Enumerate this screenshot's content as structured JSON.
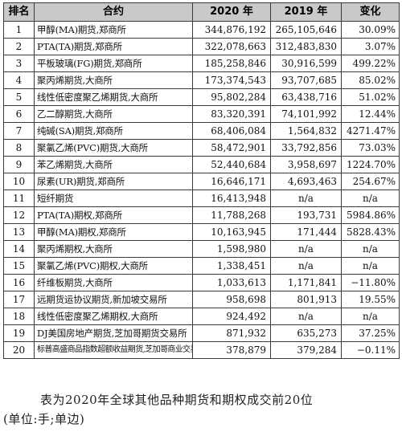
{
  "table": {
    "headers": [
      "排名",
      "合约",
      "2020 年",
      "2019 年",
      "变化"
    ],
    "rows": [
      {
        "rank": "1",
        "name": "甲醇(MA)期货,郑商所",
        "v2020": "344,876,192",
        "v2019": "265,105,646",
        "change": "30.09%"
      },
      {
        "rank": "2",
        "name": "PTA(TA)期货,郑商所",
        "v2020": "322,078,663",
        "v2019": "312,483,830",
        "change": "3.07%"
      },
      {
        "rank": "3",
        "name": "平板玻璃(FG)期货,郑商所",
        "v2020": "185,258,846",
        "v2019": "30,916,599",
        "change": "499.22%"
      },
      {
        "rank": "4",
        "name": "聚丙烯期货,大商所",
        "v2020": "173,374,543",
        "v2019": "93,707,685",
        "change": "85.02%"
      },
      {
        "rank": "5",
        "name": "线性低密度聚乙烯期货,大商所",
        "v2020": "95,802,284",
        "v2019": "63,438,716",
        "change": "51.02%"
      },
      {
        "rank": "6",
        "name": "乙二醇期货,大商所",
        "v2020": "83,320,391",
        "v2019": "74,101,992",
        "change": "12.44%"
      },
      {
        "rank": "7",
        "name": "纯碱(SA)期货,郑商所",
        "v2020": "68,406,084",
        "v2019": "1,564,832",
        "change": "4271.47%"
      },
      {
        "rank": "8",
        "name": "聚氯乙烯(PVC)期货,大商所",
        "v2020": "58,472,901",
        "v2019": "33,792,856",
        "change": "73.03%"
      },
      {
        "rank": "9",
        "name": "苯乙烯期货,大商所",
        "v2020": "52,440,684",
        "v2019": "3,958,697",
        "change": "1224.70%"
      },
      {
        "rank": "10",
        "name": "尿素(UR)期货,郑商所",
        "v2020": "16,646,171",
        "v2019": "4,693,463",
        "change": "254.67%"
      },
      {
        "rank": "11",
        "name": "短纤期货",
        "v2020": "16,413,948",
        "v2019": "n/a",
        "change": "n/a"
      },
      {
        "rank": "12",
        "name": "PTA(TA)期权,郑商所",
        "v2020": "11,788,268",
        "v2019": "193,731",
        "change": "5984.86%"
      },
      {
        "rank": "13",
        "name": "甲醇(MA)期权,郑商所",
        "v2020": "10,163,945",
        "v2019": "171,444",
        "change": "5828.43%"
      },
      {
        "rank": "14",
        "name": "聚丙烯期权,大商所",
        "v2020": "1,598,980",
        "v2019": "n/a",
        "change": "n/a"
      },
      {
        "rank": "15",
        "name": "聚氯乙烯(PVC)期权,大商所",
        "v2020": "1,338,451",
        "v2019": "n/a",
        "change": "n/a"
      },
      {
        "rank": "16",
        "name": "纤维板期货,大商所",
        "v2020": "1,033,613",
        "v2019": "1,171,841",
        "change": "−11.80%"
      },
      {
        "rank": "17",
        "name": "远期货运协议期货,新加坡交易所",
        "v2020": "958,698",
        "v2019": "801,913",
        "change": "19.55%"
      },
      {
        "rank": "18",
        "name": "线性低密度聚乙烯期权,大商所",
        "v2020": "924,492",
        "v2019": "n/a",
        "change": "n/a"
      },
      {
        "rank": "19",
        "name": "DJ美国房地产期货,芝加哥期货交易所",
        "v2020": "871,932",
        "v2019": "635,273",
        "change": "37.25%"
      },
      {
        "rank": "20",
        "name": "标普高盛商品指数超额收益期货,芝加哥商业交易所",
        "v2020": "378,879",
        "v2019": "379,284",
        "change": "−0.11%"
      }
    ]
  },
  "caption": {
    "line1": "表为2020年全球其他品种期货和期权成交前20位",
    "line2": "(单位:手;单边)"
  }
}
